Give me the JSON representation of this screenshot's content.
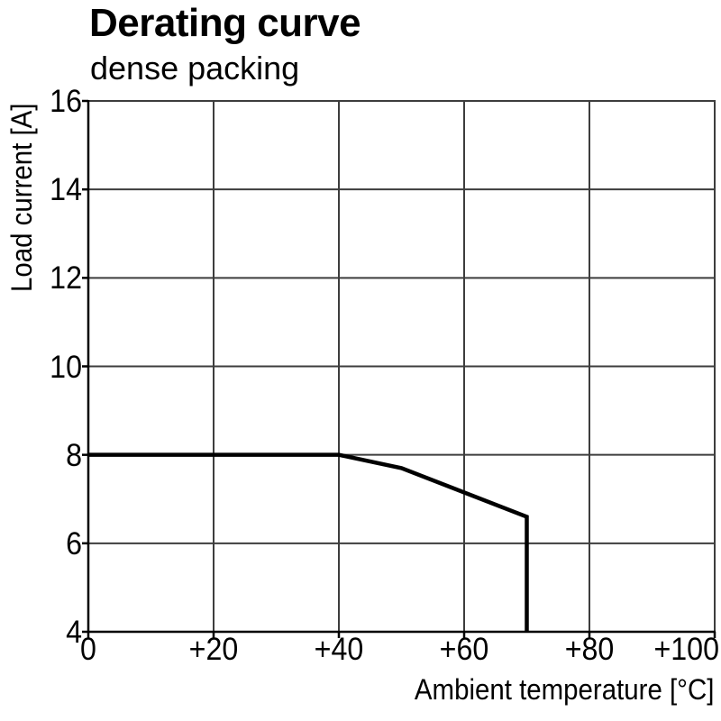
{
  "header": {
    "title": "Derating curve",
    "subtitle": "dense packing"
  },
  "chart_data": {
    "type": "line",
    "title": "Derating curve",
    "subtitle": "dense packing",
    "xlabel": "Ambient temperature [°C]",
    "ylabel": "Load current [A]",
    "xlim": [
      0,
      100
    ],
    "ylim": [
      4,
      16
    ],
    "xticks": [
      0,
      20,
      40,
      60,
      80,
      100
    ],
    "xtick_labels": [
      "0",
      "+20",
      "+40",
      "+60",
      "+80",
      "+100"
    ],
    "yticks": [
      4,
      6,
      8,
      10,
      12,
      14,
      16
    ],
    "ytick_labels": [
      "4",
      "6",
      "8",
      "10",
      "12",
      "14",
      "16"
    ],
    "grid": true,
    "legend": "none",
    "series": [
      {
        "name": "derating-curve-dense-packing",
        "points": [
          [
            0,
            8
          ],
          [
            40,
            8
          ],
          [
            50,
            7.7
          ],
          [
            70,
            6.6
          ],
          [
            70,
            4
          ]
        ]
      }
    ]
  },
  "colors": {
    "background": "#ffffff",
    "text": "#000000",
    "grid": "#3d3d3d",
    "axis": "#000000",
    "curve": "#000000"
  }
}
